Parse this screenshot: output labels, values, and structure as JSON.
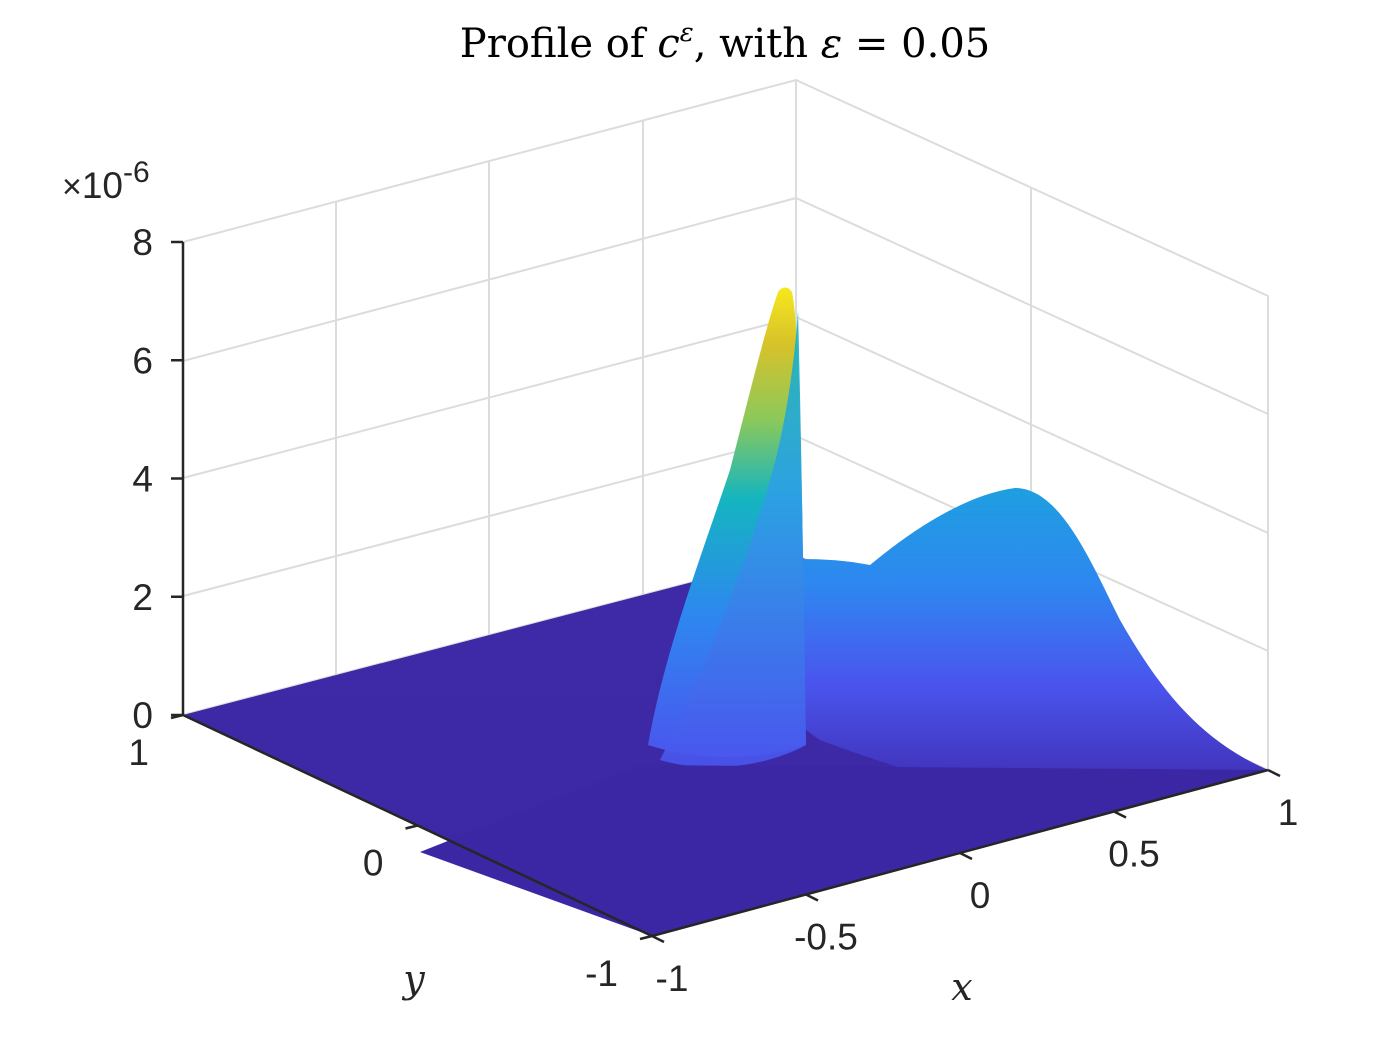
{
  "chart_data": {
    "type": "surface",
    "title": "Profile of c^ε, with ε = 0.05",
    "title_parts": {
      "prefix": "Profile of ",
      "symbol": "c",
      "superscript": "ε",
      "suffix": ", with ",
      "eps": "ε",
      "equals": " = 0.05"
    },
    "xlabel": "x",
    "ylabel": "y",
    "zlabel": "",
    "xlim": [
      -1,
      1
    ],
    "ylim": [
      -1,
      1
    ],
    "zlim": [
      0,
      8e-06
    ],
    "z_exponent_label": {
      "times": "×",
      "base": "10",
      "exp": "-6"
    },
    "x_ticks": [
      "-1",
      "-0.5",
      "0",
      "0.5",
      "1"
    ],
    "x_tick_values": [
      -1,
      -0.5,
      0,
      0.5,
      1
    ],
    "y_ticks": [
      "-1",
      "0",
      "1"
    ],
    "y_tick_values": [
      -1,
      0,
      1
    ],
    "z_ticks": [
      "0",
      "2",
      "4",
      "6",
      "8"
    ],
    "z_tick_values": [
      0,
      2,
      4,
      6,
      8
    ],
    "grid": true,
    "colormap": "parula",
    "colors": {
      "low": "#3e26a8",
      "mid": "#2e87f0",
      "teal": "#14b5c0",
      "high": "#f6e81e"
    },
    "features": [
      {
        "name": "narrow peak",
        "x": -0.1,
        "y": 0.45,
        "z_peak": 7.1e-06
      },
      {
        "name": "broad hump",
        "x": 0.85,
        "y": 0.1,
        "z_peak": 3.7e-06
      }
    ]
  }
}
